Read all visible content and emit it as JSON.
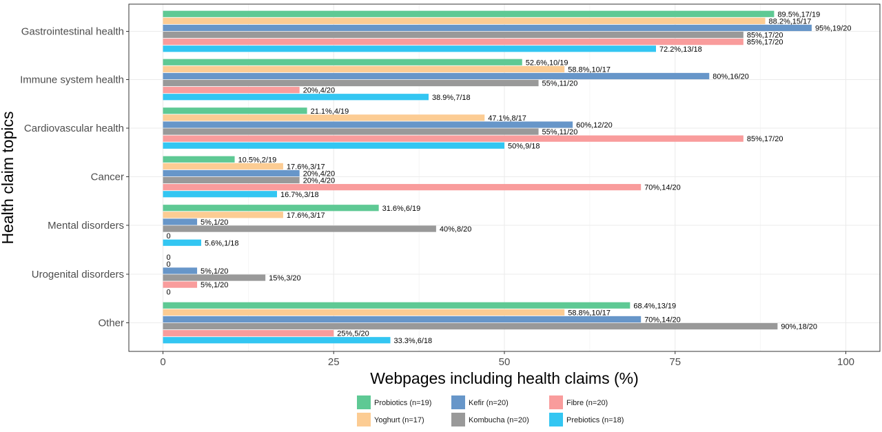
{
  "chart_data": {
    "type": "bar",
    "orientation": "horizontal",
    "title": "",
    "xlabel": "Webpages including health claims (%)",
    "ylabel": "Health claim topics",
    "xlim": [
      0,
      100
    ],
    "xticks": [
      "0",
      "25",
      "50",
      "75",
      "100"
    ],
    "grid": true,
    "legend_position": "bottom",
    "categories": [
      "Gastrointestinal health",
      "Immune system health",
      "Cardiovascular health",
      "Cancer",
      "Mental disorders",
      "Urogenital disorders",
      "Other"
    ],
    "series": [
      {
        "name": "Probiotics (n=19)",
        "color": "#5ec994",
        "values": [
          89.5,
          52.6,
          21.1,
          10.5,
          31.6,
          0,
          68.4
        ],
        "labels": [
          "89.5%,17/19",
          "52.6%,10/19",
          "21.1%,4/19",
          "10.5%,2/19",
          "31.6%,6/19",
          "0",
          "68.4%,13/19"
        ]
      },
      {
        "name": "Yoghurt (n=17)",
        "color": "#fccc93",
        "values": [
          88.2,
          58.8,
          47.1,
          17.6,
          17.6,
          0,
          58.8
        ],
        "labels": [
          "88.2%,15/17",
          "58.8%,10/17",
          "47.1%,8/17",
          "17.6%,3/17",
          "17.6%,3/17",
          "0",
          "58.8%,10/17"
        ]
      },
      {
        "name": "Kefir (n=20)",
        "color": "#6796c9",
        "values": [
          95,
          80,
          60,
          20,
          5,
          5,
          70
        ],
        "labels": [
          "95%,19/20",
          "80%,16/20",
          "60%,12/20",
          "20%,4/20",
          "5%,1/20",
          "5%,1/20",
          "70%,14/20"
        ]
      },
      {
        "name": "Kombucha (n=20)",
        "color": "#999999",
        "values": [
          85,
          55,
          55,
          20,
          40,
          15,
          90
        ],
        "labels": [
          "85%,17/20",
          "55%,11/20",
          "55%,11/20",
          "20%,4/20",
          "40%,8/20",
          "15%,3/20",
          "90%,18/20"
        ]
      },
      {
        "name": "Fibre (n=20)",
        "color": "#f99c9c",
        "values": [
          85,
          20,
          85,
          70,
          0,
          5,
          25
        ],
        "labels": [
          "85%,17/20",
          "20%,4/20",
          "85%,17/20",
          "70%,14/20",
          "0",
          "5%,1/20",
          "25%,5/20"
        ]
      },
      {
        "name": "Prebiotics (n=18)",
        "color": "#33c6f2",
        "values": [
          72.2,
          38.9,
          50,
          16.7,
          5.6,
          0,
          33.3
        ],
        "labels": [
          "72.2%,13/18",
          "38.9%,7/18",
          "50%,9/18",
          "16.7%,3/18",
          "5.6%,1/18",
          "0",
          "33.3%,6/18"
        ]
      }
    ]
  }
}
